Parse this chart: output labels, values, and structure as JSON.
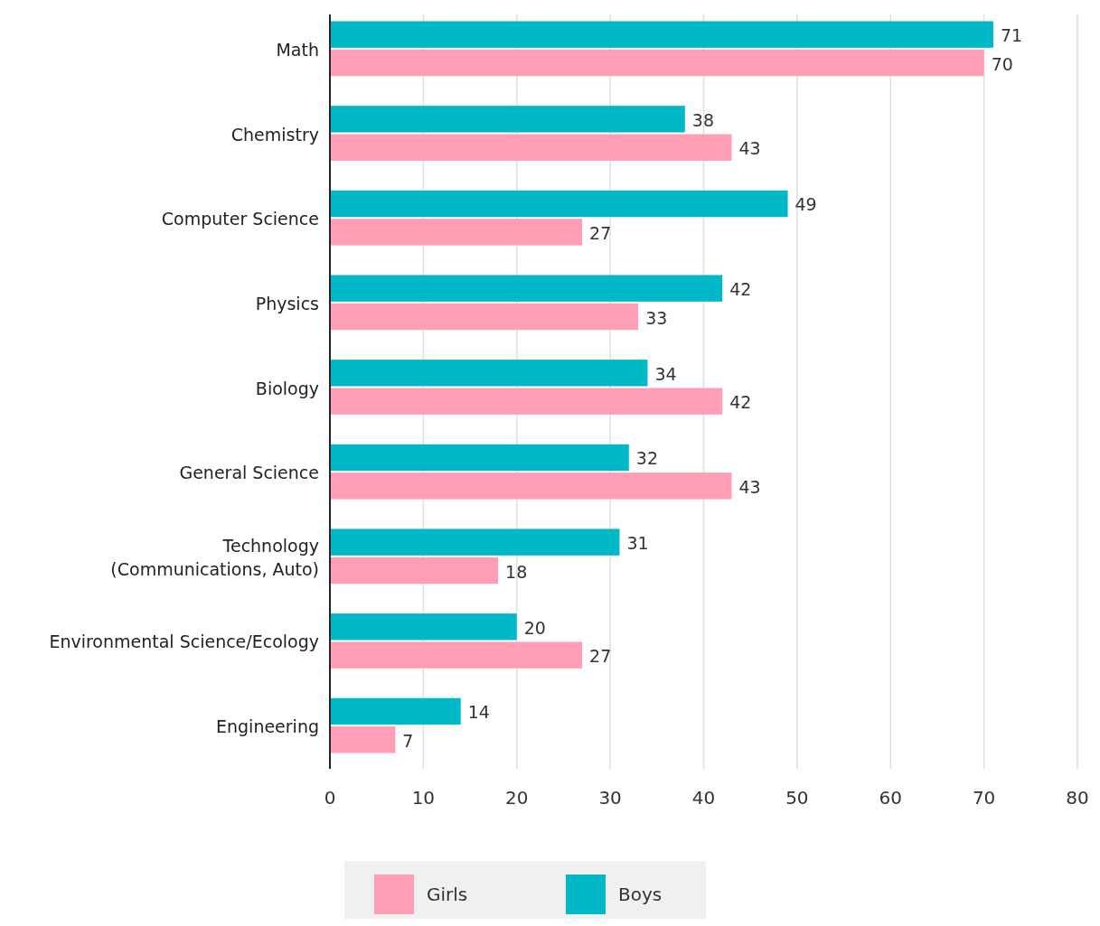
{
  "chart_data": {
    "type": "bar",
    "orientation": "horizontal",
    "categories": [
      "Math",
      "Chemistry",
      "Computer Science",
      "Physics",
      "Biology",
      "General Science",
      "Technology\n(Communications, Auto)",
      "Environmental Science/Ecology",
      "Engineering"
    ],
    "series": [
      {
        "name": "Girls",
        "color": "#ff9eb5",
        "values": [
          70,
          43,
          27,
          33,
          42,
          43,
          18,
          27,
          7
        ]
      },
      {
        "name": "Boys",
        "color": "#00b8c6",
        "values": [
          71,
          38,
          49,
          42,
          34,
          32,
          31,
          20,
          14
        ]
      }
    ],
    "xlim": [
      0,
      80
    ],
    "xticks": [
      0,
      10,
      20,
      30,
      40,
      50,
      60,
      70,
      80
    ],
    "grid": "x",
    "legend": "bottom",
    "data_labels": true
  }
}
